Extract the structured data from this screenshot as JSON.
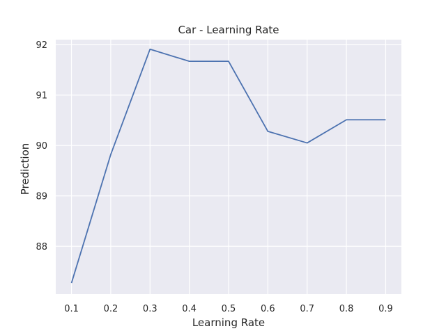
{
  "chart_data": {
    "type": "line",
    "title": "Car - Learning Rate",
    "xlabel": "Learning Rate",
    "ylabel": "Prediction",
    "x": [
      0.1,
      0.2,
      0.3,
      0.4,
      0.5,
      0.6,
      0.7,
      0.8,
      0.9
    ],
    "x_tick_labels": [
      "0.1",
      "0.2",
      "0.3",
      "0.4",
      "0.5",
      "0.6",
      "0.7",
      "0.8",
      "0.9"
    ],
    "y_ticks": [
      88,
      89,
      90,
      91,
      92
    ],
    "y_tick_labels": [
      "88",
      "89",
      "90",
      "91",
      "92"
    ],
    "series": [
      {
        "values": [
          87.27,
          89.82,
          91.91,
          91.67,
          91.67,
          90.28,
          90.05,
          90.51,
          90.51
        ],
        "color": "#4c72b0"
      }
    ],
    "xlim": [
      0.06,
      0.94
    ],
    "ylim": [
      87.05,
      92.1
    ],
    "grid": true,
    "background_color": "#eaeaf2",
    "grid_color": "#ffffff"
  }
}
